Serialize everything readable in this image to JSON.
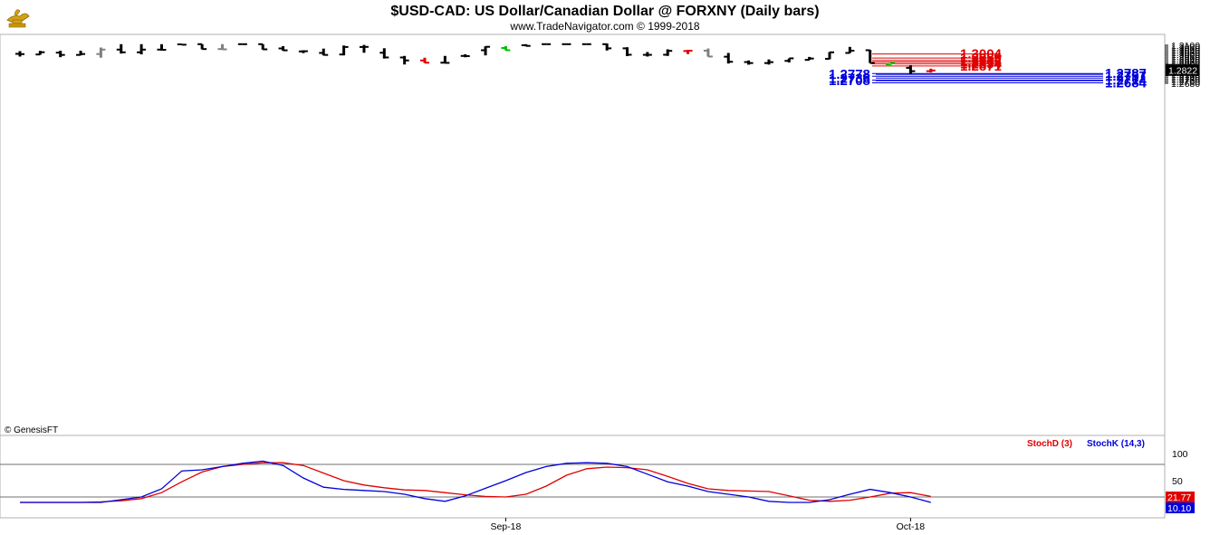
{
  "title": "$USD-CAD:  US Dollar/Canadian Dollar @ FORXNY  (Daily bars)",
  "subtitle": "www.TradeNavigator.com © 1999-2018",
  "watermark": "© GenesisFT",
  "chart_data": [
    {
      "type": "ohlc",
      "ylim": [
        1.2655,
        1.3125
      ],
      "y_ticks": [
        "1.3100",
        "1.3080",
        "1.3060",
        "1.3040",
        "1.3020",
        "1.3000",
        "1.2980",
        "1.2960",
        "1.2940",
        "1.2920",
        "1.2900",
        "1.2880",
        "1.2860",
        "1.2840",
        "1.2820",
        "1.2800",
        "1.2780",
        "1.2760",
        "1.2740",
        "1.2720",
        "1.2700",
        "1.2680"
      ],
      "last_price": "1.2822",
      "x_labels": [
        {
          "label": "Sep-18",
          "index": 24
        },
        {
          "label": "Oct-18",
          "index": 44
        }
      ],
      "bars": [
        {
          "o": 1.3005,
          "h": 1.3035,
          "l": 1.2975,
          "c": 1.3002,
          "color": "#000000"
        },
        {
          "o": 1.2998,
          "h": 1.3038,
          "l": 1.2995,
          "c": 1.3023,
          "color": "#000000"
        },
        {
          "o": 1.3018,
          "h": 1.304,
          "l": 1.2968,
          "c": 1.2993,
          "color": "#000000"
        },
        {
          "o": 1.2993,
          "h": 1.304,
          "l": 1.2988,
          "c": 1.3003,
          "color": "#000000"
        },
        {
          "o": 1.3003,
          "h": 1.3075,
          "l": 1.2962,
          "c": 1.3052,
          "color": "#808080"
        },
        {
          "o": 1.3052,
          "h": 1.3112,
          "l": 1.3008,
          "c": 1.3022,
          "color": "#000000"
        },
        {
          "o": 1.3022,
          "h": 1.3112,
          "l": 1.2999,
          "c": 1.3052,
          "color": "#000000"
        },
        {
          "o": 1.3052,
          "h": 1.3112,
          "l": 1.3042,
          "c": 1.305,
          "color": "#000000"
        },
        {
          "o": 1.311,
          "h": 1.3112,
          "l": 1.3103,
          "c": 1.3106,
          "color": "#000000"
        },
        {
          "o": 1.3112,
          "h": 1.3112,
          "l": 1.3055,
          "c": 1.3058,
          "color": "#000000"
        },
        {
          "o": 1.3058,
          "h": 1.3112,
          "l": 1.305,
          "c": 1.3055,
          "color": "#808080"
        },
        {
          "o": 1.3112,
          "h": 1.3112,
          "l": 1.3112,
          "c": 1.3112,
          "color": "#000000"
        },
        {
          "o": 1.3112,
          "h": 1.3112,
          "l": 1.3052,
          "c": 1.3055,
          "color": "#000000"
        },
        {
          "o": 1.3065,
          "h": 1.309,
          "l": 1.304,
          "c": 1.3044,
          "color": "#000000"
        },
        {
          "o": 1.3032,
          "h": 1.3045,
          "l": 1.3013,
          "c": 1.3034,
          "color": "#000000"
        },
        {
          "o": 1.3015,
          "h": 1.3063,
          "l": 1.2988,
          "c": 1.2993,
          "color": "#000000"
        },
        {
          "o": 1.2998,
          "h": 1.3097,
          "l": 1.2988,
          "c": 1.3081,
          "color": "#000000"
        },
        {
          "o": 1.3081,
          "h": 1.3104,
          "l": 1.3017,
          "c": 1.3082,
          "color": "#000000"
        },
        {
          "o": 1.3017,
          "h": 1.3067,
          "l": 1.2953,
          "c": 1.2965,
          "color": "#000000"
        },
        {
          "o": 1.2965,
          "h": 1.2982,
          "l": 1.2887,
          "c": 1.2932,
          "color": "#000000"
        },
        {
          "o": 1.2932,
          "h": 1.2962,
          "l": 1.2903,
          "c": 1.2907,
          "color": "#E00000"
        },
        {
          "o": 1.2907,
          "h": 1.2982,
          "l": 1.2904,
          "c": 1.2905,
          "color": "#000000"
        },
        {
          "o": 1.2982,
          "h": 1.3,
          "l": 1.2967,
          "c": 1.298,
          "color": "#000000"
        },
        {
          "o": 1.3045,
          "h": 1.3088,
          "l": 1.2988,
          "c": 1.3083,
          "color": "#000000"
        },
        {
          "o": 1.307,
          "h": 1.309,
          "l": 1.3044,
          "c": 1.3045,
          "color": "#00C000"
        },
        {
          "o": 1.31,
          "h": 1.3112,
          "l": 1.3088,
          "c": 1.3093,
          "color": "#000000"
        },
        {
          "o": 1.3112,
          "h": 1.3112,
          "l": 1.3112,
          "c": 1.3112,
          "color": "#000000"
        },
        {
          "o": 1.3112,
          "h": 1.3112,
          "l": 1.3112,
          "c": 1.3112,
          "color": "#000000"
        },
        {
          "o": 1.3112,
          "h": 1.3112,
          "l": 1.3112,
          "c": 1.3112,
          "color": "#000000"
        },
        {
          "o": 1.3112,
          "h": 1.312,
          "l": 1.3042,
          "c": 1.3066,
          "color": "#000000"
        },
        {
          "o": 1.3066,
          "h": 1.3078,
          "l": 1.298,
          "c": 1.2995,
          "color": "#000000"
        },
        {
          "o": 1.2994,
          "h": 1.3025,
          "l": 1.2975,
          "c": 1.2994,
          "color": "#000000"
        },
        {
          "o": 1.2995,
          "h": 1.3055,
          "l": 1.2982,
          "c": 1.3038,
          "color": "#000000"
        },
        {
          "o": 1.3036,
          "h": 1.305,
          "l": 1.3002,
          "c": 1.304,
          "color": "#E00000"
        },
        {
          "o": 1.304,
          "h": 1.3064,
          "l": 1.2974,
          "c": 1.2975,
          "color": "#808080"
        },
        {
          "o": 1.2973,
          "h": 1.3015,
          "l": 1.2898,
          "c": 1.2917,
          "color": "#000000"
        },
        {
          "o": 1.2914,
          "h": 1.2932,
          "l": 1.2885,
          "c": 1.2903,
          "color": "#000000"
        },
        {
          "o": 1.2903,
          "h": 1.2943,
          "l": 1.2886,
          "c": 1.2913,
          "color": "#000000"
        },
        {
          "o": 1.2927,
          "h": 1.2954,
          "l": 1.291,
          "c": 1.2955,
          "color": "#000000"
        },
        {
          "o": 1.2938,
          "h": 1.2971,
          "l": 1.2937,
          "c": 1.2953,
          "color": "#000000"
        },
        {
          "o": 1.295,
          "h": 1.3025,
          "l": 1.2945,
          "c": 1.3022,
          "color": "#000000"
        },
        {
          "o": 1.3015,
          "h": 1.3082,
          "l": 1.3013,
          "c": 1.304,
          "color": "#000000"
        },
        {
          "o": 1.3045,
          "h": 1.3048,
          "l": 1.2903,
          "c": 1.2903,
          "color": "#000000"
        },
        {
          "o": 1.288,
          "h": 1.2903,
          "l": 1.288,
          "c": 1.2903,
          "color": "#00DD00"
        },
        {
          "o": 1.285,
          "h": 1.288,
          "l": 1.278,
          "c": 1.2813,
          "color": "#000000"
        },
        {
          "o": 1.2813,
          "h": 1.2841,
          "l": 1.2798,
          "c": 1.2821,
          "color": "#E00000"
        }
      ],
      "levels": [
        {
          "value": "1.3004",
          "y": 1.3004,
          "color": "#E00000",
          "side": "right"
        },
        {
          "value": "1.2959",
          "y": 1.2959,
          "color": "#E00000",
          "side": "right"
        },
        {
          "value": "1.2932",
          "y": 1.2932,
          "color": "#E00000",
          "side": "right"
        },
        {
          "value": "1.2915",
          "y": 1.2915,
          "color": "#E00000",
          "side": "right"
        },
        {
          "value": "1.2894",
          "y": 1.2894,
          "color": "#E00000",
          "side": "right"
        },
        {
          "value": "1.2871",
          "y": 1.2871,
          "color": "#E00000",
          "side": "right"
        },
        {
          "value": "1.2787",
          "y": 1.2787,
          "color": "#0000DD",
          "side": "far"
        },
        {
          "value": "1.2778",
          "y": 1.2778,
          "color": "#0000DD",
          "side": "left"
        },
        {
          "value": "1.2757",
          "y": 1.2757,
          "color": "#0000DD",
          "side": "far"
        },
        {
          "value": "1.2736",
          "y": 1.2736,
          "color": "#0000DD",
          "side": "left"
        },
        {
          "value": "1.2714",
          "y": 1.2714,
          "color": "#0000DD",
          "side": "far"
        },
        {
          "value": "1.2708",
          "y": 1.2708,
          "color": "#0000DD",
          "side": "left"
        },
        {
          "value": "1.2684",
          "y": 1.2684,
          "color": "#0000DD",
          "side": "far"
        }
      ]
    },
    {
      "type": "line",
      "ylim": [
        0,
        100
      ],
      "y_ticks": [
        "100",
        "50"
      ],
      "reference_lines": [
        80,
        20
      ],
      "series": [
        {
          "name": "StochD (3)",
          "color": "#E00000",
          "last": "21.77",
          "values": [
            10,
            10,
            10,
            10,
            11,
            13,
            17,
            28,
            48,
            66,
            76,
            80,
            83,
            83,
            78,
            64,
            50,
            42,
            37,
            33,
            32,
            28,
            24,
            21,
            20,
            25,
            40,
            60,
            72,
            75,
            74,
            70,
            58,
            45,
            35,
            32,
            31,
            30,
            22,
            14,
            12,
            14,
            20,
            27,
            28,
            21
          ]
        },
        {
          "name": "StochK (14,3)",
          "color": "#0000DD",
          "last": "10.10",
          "values": [
            10,
            10,
            10,
            10,
            10,
            15,
            20,
            35,
            68,
            70,
            76,
            82,
            86,
            78,
            55,
            38,
            34,
            32,
            30,
            25,
            17,
            12,
            22,
            36,
            50,
            65,
            76,
            82,
            83,
            82,
            76,
            62,
            48,
            40,
            30,
            25,
            20,
            12,
            10,
            10,
            15,
            25,
            34,
            28,
            20,
            10
          ]
        }
      ]
    }
  ]
}
